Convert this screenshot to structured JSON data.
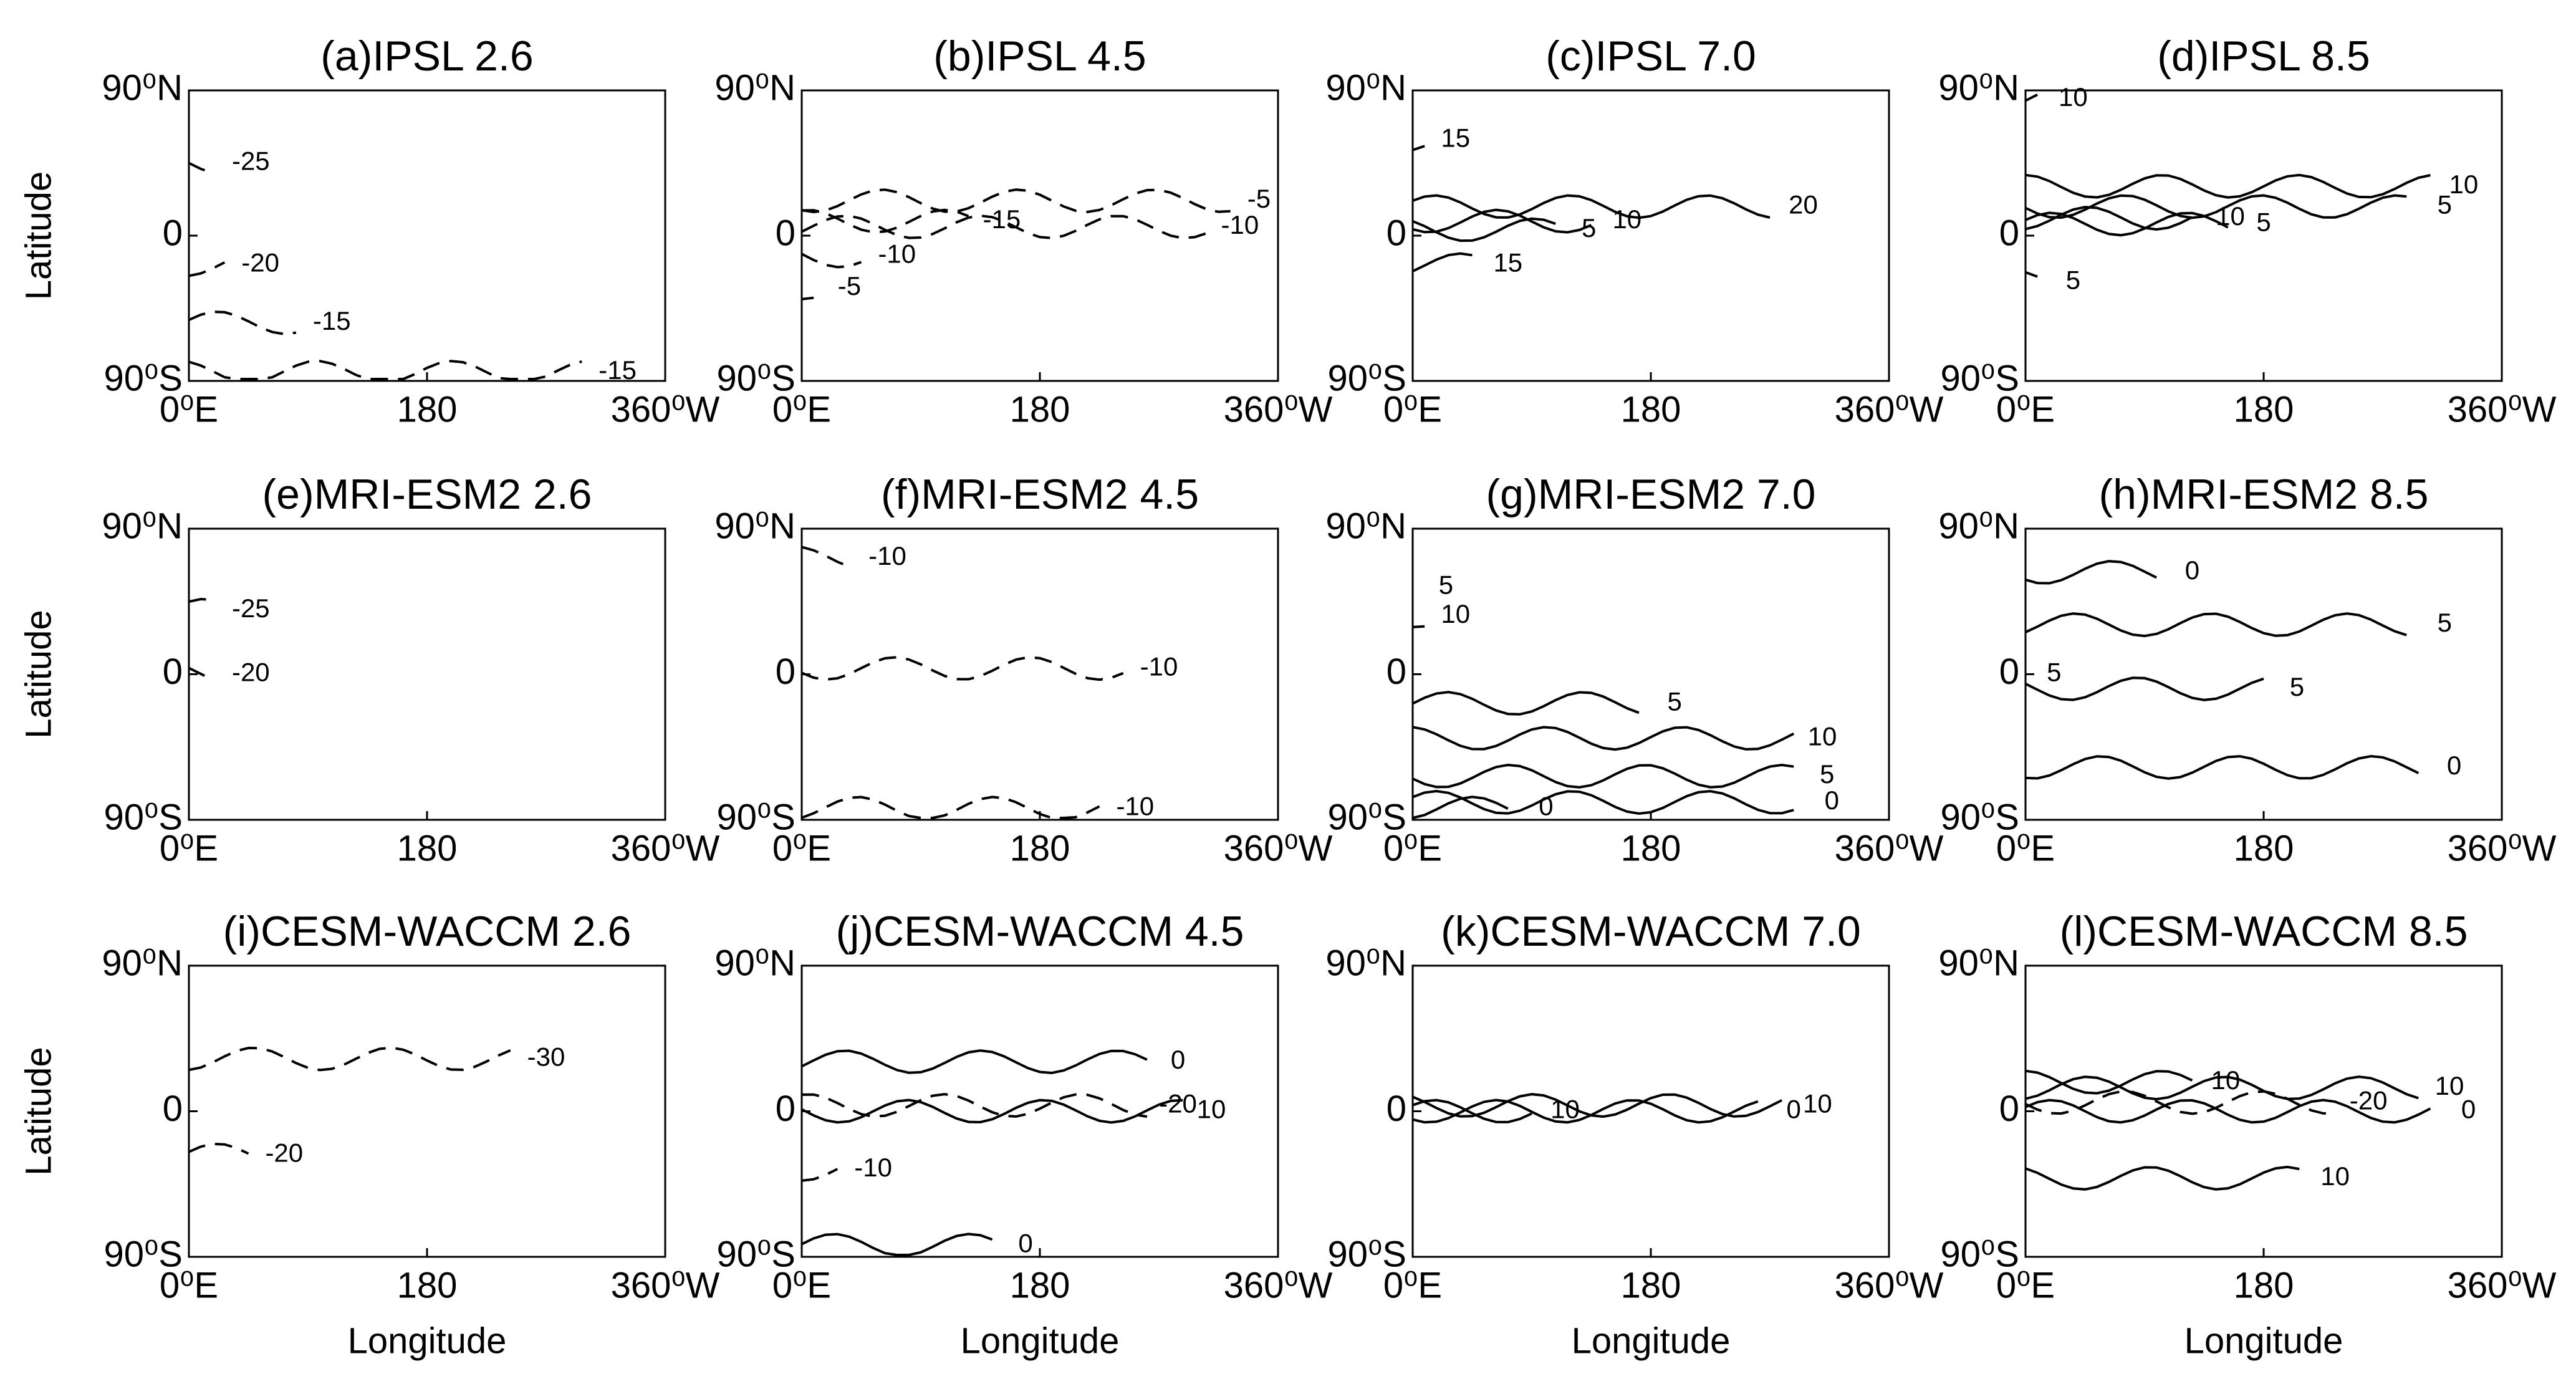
{
  "chart_data": [
    {
      "type": "contour",
      "title": "(a)IPSL 2.6",
      "ylabel": "Latitude",
      "xlim": [
        0,
        360
      ],
      "ylim": [
        -90,
        90
      ],
      "xticks": [
        {
          "value": 0,
          "label": "0⁰E"
        },
        180,
        {
          "value": 360,
          "label": "360⁰W"
        }
      ],
      "yticks": [
        {
          "value": -90,
          "label": "90⁰S"
        },
        0,
        {
          "value": 90,
          "label": "90⁰N"
        }
      ],
      "contour_levels": [
        -25,
        -20,
        -15,
        -15
      ]
    },
    {
      "type": "contour",
      "title": "(b)IPSL 4.5",
      "xlim": [
        0,
        360
      ],
      "ylim": [
        -90,
        90
      ],
      "xticks": [
        {
          "value": 0,
          "label": "0⁰E"
        },
        180,
        {
          "value": 360,
          "label": "360⁰W"
        }
      ],
      "yticks": [
        {
          "value": -90,
          "label": "90⁰S"
        },
        0,
        {
          "value": 90,
          "label": "90⁰N"
        }
      ],
      "contour_levels": [
        -5,
        -10,
        -15,
        -10,
        -5
      ]
    },
    {
      "type": "contour",
      "title": "(c)IPSL 7.0",
      "xlim": [
        0,
        360
      ],
      "ylim": [
        -90,
        90
      ],
      "xticks": [
        {
          "value": 0,
          "label": "0⁰E"
        },
        180,
        {
          "value": 360,
          "label": "360⁰W"
        }
      ],
      "yticks": [
        {
          "value": -90,
          "label": "90⁰S"
        },
        0,
        {
          "value": 90,
          "label": "90⁰N"
        }
      ],
      "contour_levels": [
        15,
        20,
        5,
        10,
        15
      ]
    },
    {
      "type": "contour",
      "title": "(d)IPSL 8.5",
      "xlim": [
        0,
        360
      ],
      "ylim": [
        -90,
        90
      ],
      "xticks": [
        {
          "value": 0,
          "label": "0⁰E"
        },
        180,
        {
          "value": 360,
          "label": "360⁰W"
        }
      ],
      "yticks": [
        {
          "value": -90,
          "label": "90⁰S"
        },
        0,
        {
          "value": 90,
          "label": "90⁰N"
        }
      ],
      "contour_levels": [
        10,
        10,
        5,
        10,
        5,
        5
      ]
    },
    {
      "type": "contour",
      "title": "(e)MRI-ESM2 2.6",
      "ylabel": "Latitude",
      "xlim": [
        0,
        360
      ],
      "ylim": [
        -90,
        90
      ],
      "xticks": [
        {
          "value": 0,
          "label": "0⁰E"
        },
        180,
        {
          "value": 360,
          "label": "360⁰W"
        }
      ],
      "yticks": [
        {
          "value": -90,
          "label": "90⁰S"
        },
        0,
        {
          "value": 90,
          "label": "90⁰N"
        }
      ],
      "contour_levels": [
        -25,
        -20
      ]
    },
    {
      "type": "contour",
      "title": "(f)MRI-ESM2 4.5",
      "xlim": [
        0,
        360
      ],
      "ylim": [
        -90,
        90
      ],
      "xticks": [
        {
          "value": 0,
          "label": "0⁰E"
        },
        180,
        {
          "value": 360,
          "label": "360⁰W"
        }
      ],
      "yticks": [
        {
          "value": -90,
          "label": "90⁰S"
        },
        0,
        {
          "value": 90,
          "label": "90⁰N"
        }
      ],
      "contour_levels": [
        -10,
        -10,
        -10
      ]
    },
    {
      "type": "contour",
      "title": "(g)MRI-ESM2 7.0",
      "xlim": [
        0,
        360
      ],
      "ylim": [
        -90,
        90
      ],
      "xticks": [
        {
          "value": 0,
          "label": "0⁰E"
        },
        180,
        {
          "value": 360,
          "label": "360⁰W"
        }
      ],
      "yticks": [
        {
          "value": -90,
          "label": "90⁰S"
        },
        0,
        {
          "value": 90,
          "label": "90⁰N"
        }
      ],
      "contour_levels": [
        5,
        10,
        5,
        10,
        5,
        0,
        0
      ]
    },
    {
      "type": "contour",
      "title": "(h)MRI-ESM2 8.5",
      "xlim": [
        0,
        360
      ],
      "ylim": [
        -90,
        90
      ],
      "xticks": [
        {
          "value": 0,
          "label": "0⁰E"
        },
        180,
        {
          "value": 360,
          "label": "360⁰W"
        }
      ],
      "yticks": [
        {
          "value": -90,
          "label": "90⁰S"
        },
        0,
        {
          "value": 90,
          "label": "90⁰N"
        }
      ],
      "contour_levels": [
        0,
        5,
        5,
        5,
        0
      ]
    },
    {
      "type": "contour",
      "title": "(i)CESM-WACCM 2.6",
      "ylabel": "Latitude",
      "xlabel": "Longitude",
      "xlim": [
        0,
        360
      ],
      "ylim": [
        -90,
        90
      ],
      "xticks": [
        {
          "value": 0,
          "label": "0⁰E"
        },
        180,
        {
          "value": 360,
          "label": "360⁰W"
        }
      ],
      "yticks": [
        {
          "value": -90,
          "label": "90⁰S"
        },
        0,
        {
          "value": 90,
          "label": "90⁰N"
        }
      ],
      "contour_levels": [
        -30,
        -20
      ]
    },
    {
      "type": "contour",
      "title": "(j)CESM-WACCM 4.5",
      "xlabel": "Longitude",
      "xlim": [
        0,
        360
      ],
      "ylim": [
        -90,
        90
      ],
      "xticks": [
        {
          "value": 0,
          "label": "0⁰E"
        },
        180,
        {
          "value": 360,
          "label": "360⁰W"
        }
      ],
      "yticks": [
        {
          "value": -90,
          "label": "90⁰S"
        },
        0,
        {
          "value": 90,
          "label": "90⁰N"
        }
      ],
      "contour_levels": [
        0,
        -20,
        10,
        -10,
        0
      ]
    },
    {
      "type": "contour",
      "title": "(k)CESM-WACCM 7.0",
      "xlabel": "Longitude",
      "xlim": [
        0,
        360
      ],
      "ylim": [
        -90,
        90
      ],
      "xticks": [
        {
          "value": 0,
          "label": "0⁰E"
        },
        180,
        {
          "value": 360,
          "label": "360⁰W"
        }
      ],
      "yticks": [
        {
          "value": -90,
          "label": "90⁰S"
        },
        0,
        {
          "value": 90,
          "label": "90⁰N"
        }
      ],
      "contour_levels": [
        10,
        10,
        0
      ]
    },
    {
      "type": "contour",
      "title": "(l)CESM-WACCM 8.5",
      "xlabel": "Longitude",
      "xlim": [
        0,
        360
      ],
      "ylim": [
        -90,
        90
      ],
      "xticks": [
        {
          "value": 0,
          "label": "0⁰E"
        },
        180,
        {
          "value": 360,
          "label": "360⁰W"
        }
      ],
      "yticks": [
        {
          "value": -90,
          "label": "90⁰S"
        },
        0,
        {
          "value": 90,
          "label": "90⁰N"
        }
      ],
      "contour_levels": [
        10,
        -20,
        10,
        0,
        10
      ]
    }
  ]
}
